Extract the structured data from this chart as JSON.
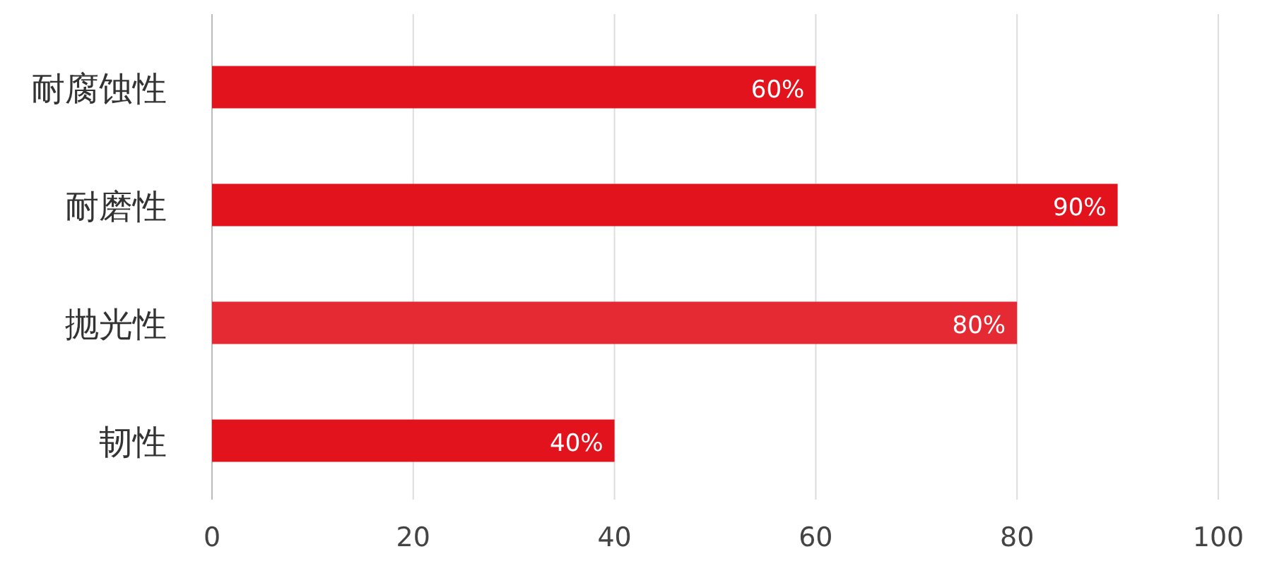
{
  "chart_data": {
    "type": "bar",
    "orientation": "horizontal",
    "categories": [
      "耐腐蚀性",
      "耐磨性",
      "抛光性",
      "韧性"
    ],
    "values": [
      60,
      90,
      80,
      40
    ],
    "colors": [
      "#e3131e",
      "#e3131e",
      "#e62a33",
      "#e3131e"
    ],
    "value_labels": [
      "60%",
      "90%",
      "80%",
      "40%"
    ],
    "xlim": [
      0,
      100
    ],
    "xticks": [
      0,
      20,
      40,
      60,
      80,
      100
    ],
    "grid": "x"
  }
}
